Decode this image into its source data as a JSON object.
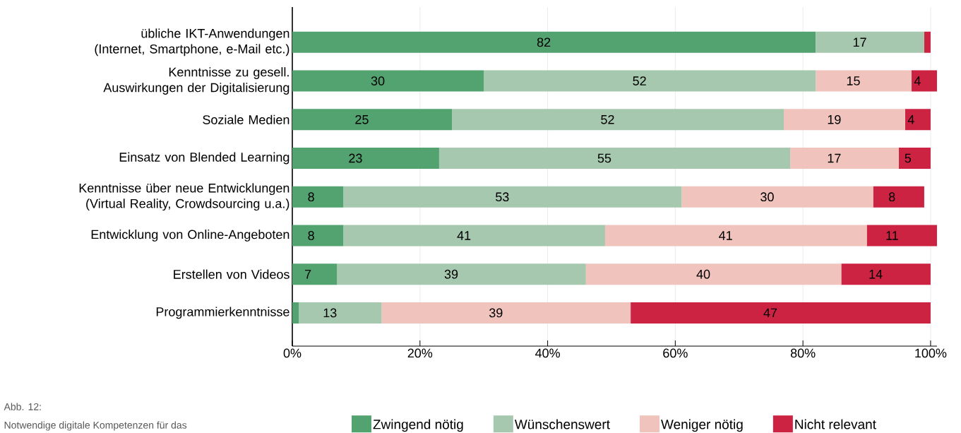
{
  "chart_data": {
    "type": "bar",
    "orientation": "horizontal",
    "stacked": true,
    "categories": [
      "übliche IKT-Anwendungen (Internet, Smartphone, e-Mail etc.)",
      "Kenntnisse zu gesell. Auswirkungen der Digitalisierung",
      "Soziale Medien",
      "Einsatz von Blended Learning",
      "Kenntnisse über neue Entwicklungen (Virtual Reality, Crowdsourcing u.a.)",
      "Entwicklung von Online-Angeboten",
      "Erstellen von Videos",
      "Programmierkenntnisse"
    ],
    "series": [
      {
        "name": "Zwingend nötig",
        "color": "#52a370",
        "values": [
          82,
          30,
          25,
          23,
          8,
          8,
          7,
          1
        ],
        "value_labels": [
          "82",
          "30",
          "25",
          "23",
          "8",
          "8",
          "7",
          null
        ]
      },
      {
        "name": "Wünschenswert",
        "color": "#a6c8ae",
        "values": [
          17,
          52,
          52,
          55,
          53,
          41,
          39,
          13
        ],
        "value_labels": [
          "17",
          "52",
          "52",
          "55",
          "53",
          "41",
          "39",
          "13"
        ]
      },
      {
        "name": "Weniger nötig",
        "color": "#f0c4bd",
        "values": [
          0,
          15,
          19,
          17,
          30,
          41,
          40,
          39
        ],
        "value_labels": [
          null,
          "15",
          "19",
          "17",
          "30",
          "41",
          "40",
          "39"
        ]
      },
      {
        "name": "Nicht relevant",
        "color": "#cc2343",
        "values": [
          1,
          4,
          4,
          5,
          8,
          11,
          14,
          47
        ],
        "value_labels": [
          null,
          "4",
          "4",
          "5",
          "8",
          "11",
          "14",
          "47"
        ]
      }
    ],
    "xlim": [
      0,
      101
    ],
    "xticks": [
      {
        "value": 0,
        "label": "0%"
      },
      {
        "value": 20,
        "label": "20%"
      },
      {
        "value": 40,
        "label": "40%"
      },
      {
        "value": 60,
        "label": "60%"
      },
      {
        "value": 80,
        "label": "80%"
      },
      {
        "value": 100,
        "label": "100%"
      }
    ],
    "grid": "x",
    "legend": "bottom",
    "annotations": [
      "Abb. 12:",
      "Notwendige digitale Kompetenzen für das"
    ]
  }
}
